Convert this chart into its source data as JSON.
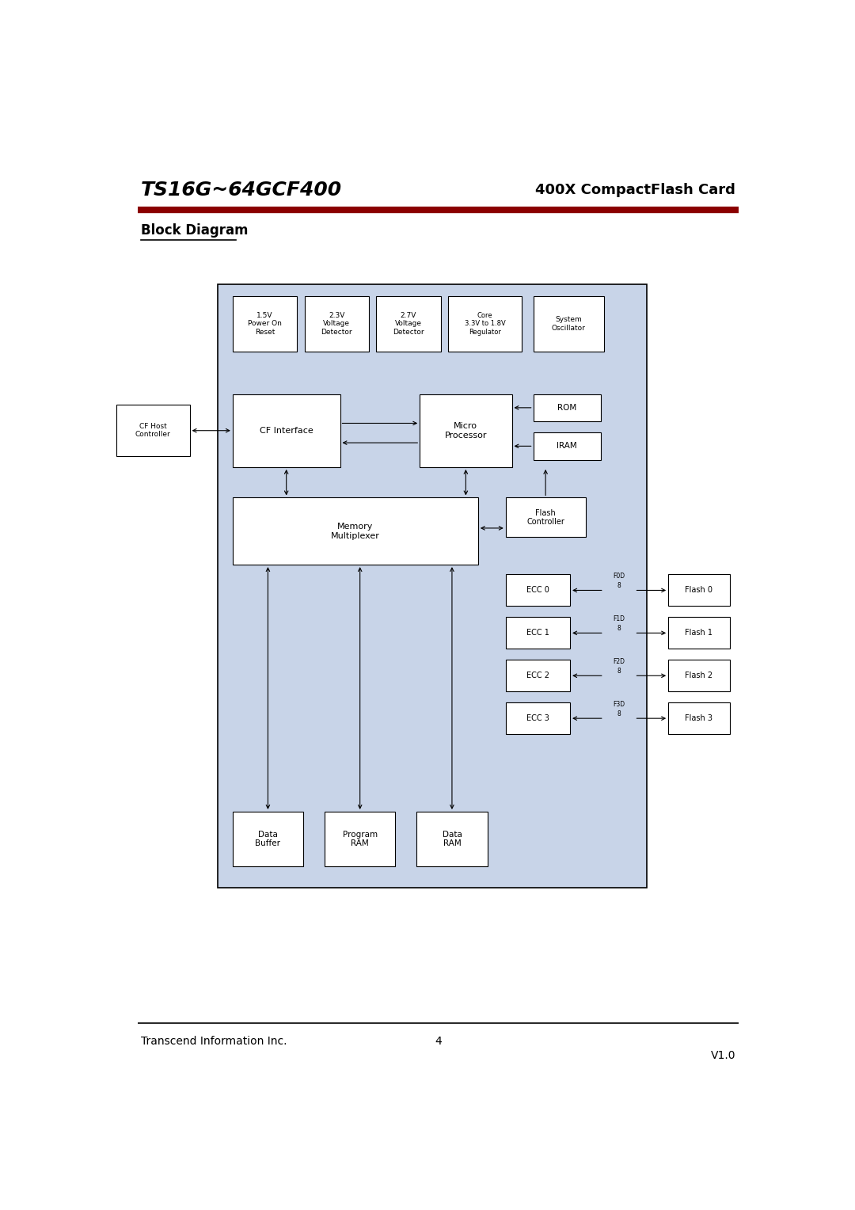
{
  "title_left": "TS16G~64GCF400",
  "title_right": "400X CompactFlash Card",
  "section_title": "Block Diagram",
  "footer_left": "Transcend Information Inc.",
  "footer_center": "4",
  "footer_right": "V1.0",
  "bg_color": "#ffffff",
  "red_line_color": "#8b0000",
  "outer_box_fill": "#c8d4e8",
  "white_fill": "#ffffff",
  "border_color": "#000000"
}
